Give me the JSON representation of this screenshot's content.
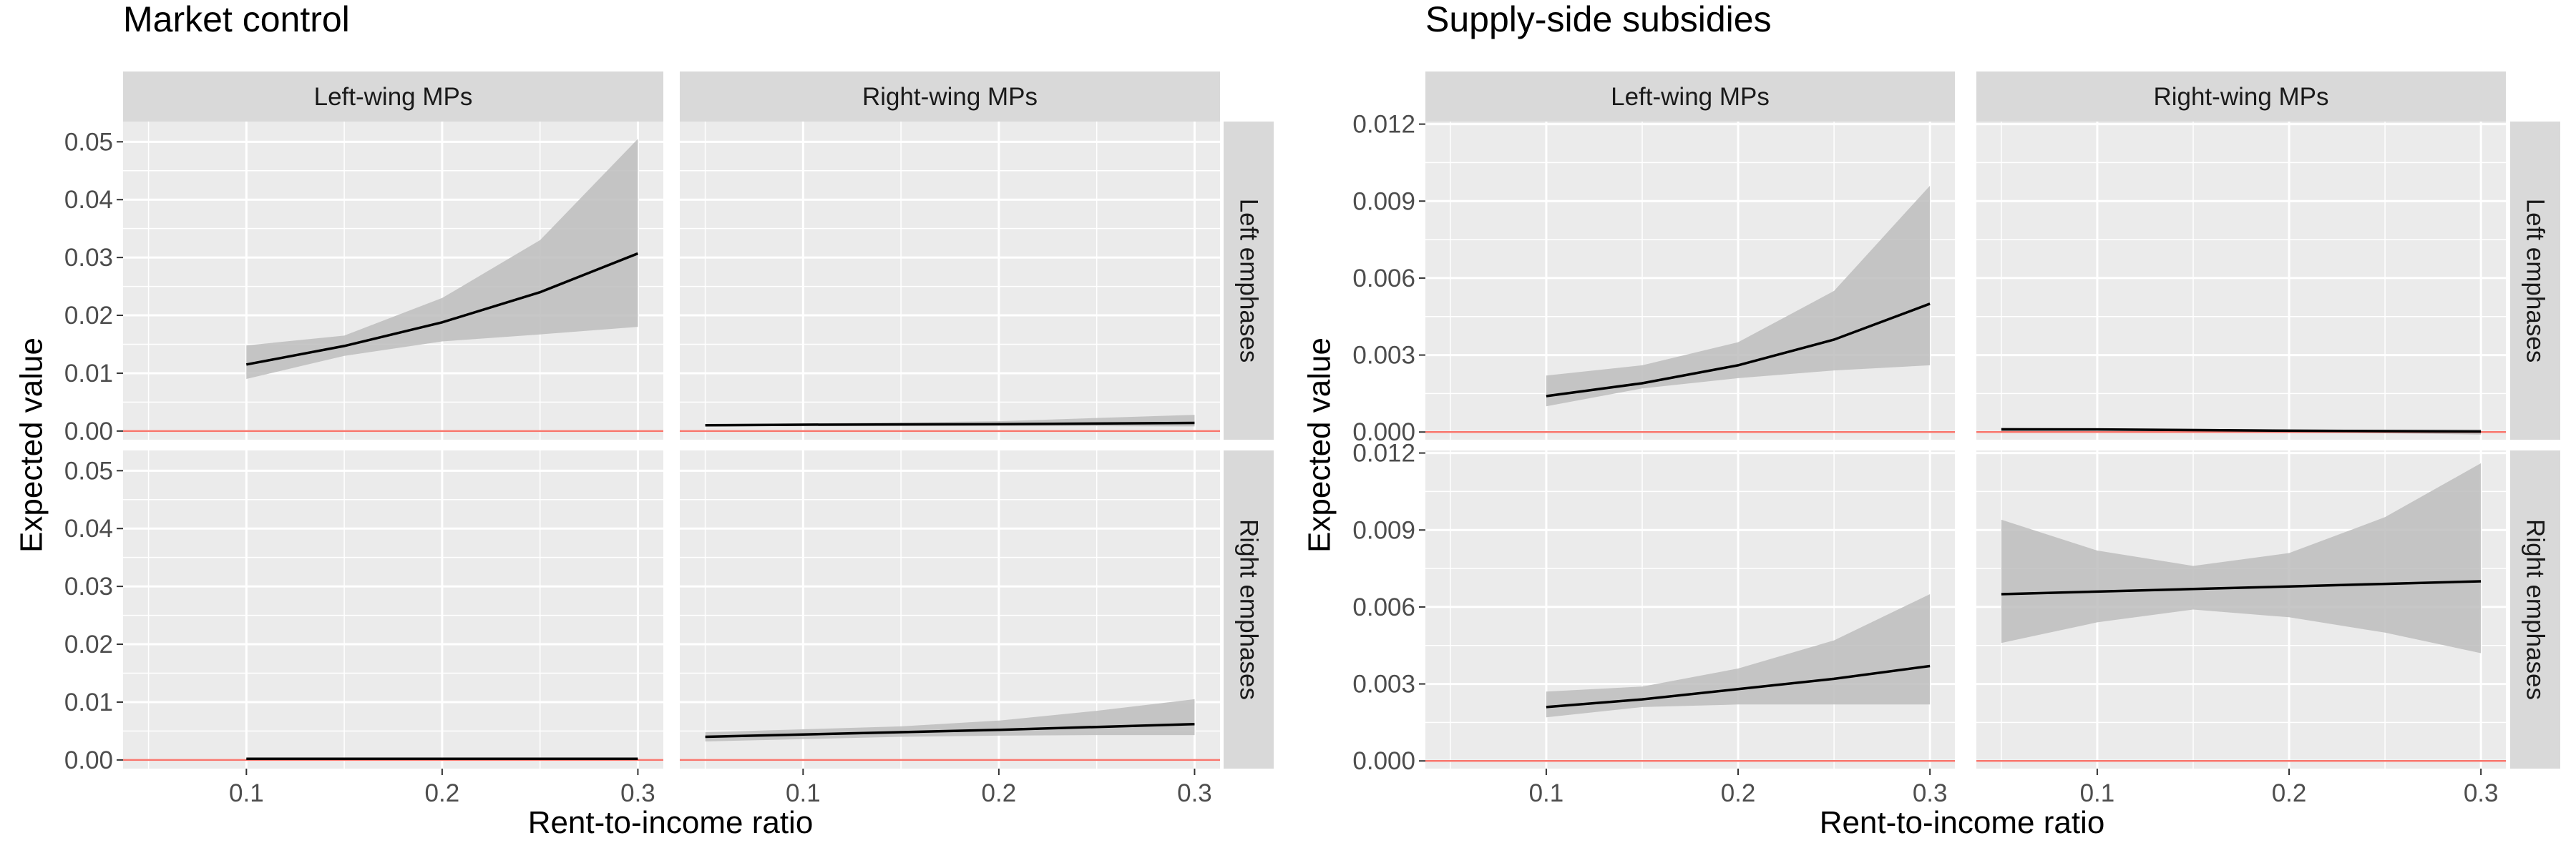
{
  "charts": [
    {
      "title": "Market control",
      "x_axis_title": "Rent-to-income ratio",
      "y_axis_title": "Expected value",
      "col_strips": [
        "Left-wing MPs",
        "Right-wing MPs"
      ],
      "row_strips": [
        "Left emphases",
        "Right emphases"
      ],
      "x_tick_labels": [
        "0.1",
        "0.2",
        "0.3"
      ],
      "y_tick_labels": [
        "0.00",
        "0.01",
        "0.02",
        "0.03",
        "0.04",
        "0.05"
      ]
    },
    {
      "title": "Supply-side subsidies",
      "x_axis_title": "Rent-to-income ratio",
      "y_axis_title": "Expected value",
      "col_strips": [
        "Left-wing MPs",
        "Right-wing MPs"
      ],
      "row_strips": [
        "Left emphases",
        "Right emphases"
      ],
      "x_tick_labels": [
        "0.1",
        "0.2",
        "0.3"
      ],
      "y_tick_labels": [
        "0.000",
        "0.003",
        "0.006",
        "0.009",
        "0.012"
      ]
    }
  ],
  "chart_data": [
    {
      "type": "line",
      "title": "Market control",
      "xlabel": "Rent-to-income ratio",
      "ylabel": "Expected value",
      "xlim": [
        0.037,
        0.313
      ],
      "ylim": [
        -0.0015,
        0.0535
      ],
      "x_ticks": [
        0.1,
        0.2,
        0.3
      ],
      "y_ticks": [
        0,
        0.01,
        0.02,
        0.03,
        0.04,
        0.05
      ],
      "facet_cols": [
        "Left-wing MPs",
        "Right-wing MPs"
      ],
      "facet_rows": [
        "Left emphases",
        "Right emphases"
      ],
      "reference_line": {
        "y": 0,
        "color": "#f8766d"
      },
      "colors": {
        "line": "#000000",
        "ribbon": "#bdbdbd",
        "panel": "#ebebeb",
        "strip": "#d9d9d9",
        "grid": "#ffffff"
      },
      "grid": true,
      "panels": [
        {
          "row": "Left emphases",
          "col": "Left-wing MPs",
          "x": [
            0.1,
            0.15,
            0.2,
            0.25,
            0.3
          ],
          "y": [
            0.0115,
            0.0147,
            0.0188,
            0.024,
            0.0307
          ],
          "lower": [
            0.009,
            0.013,
            0.0155,
            0.0167,
            0.018
          ],
          "upper": [
            0.0148,
            0.0165,
            0.023,
            0.033,
            0.0505
          ]
        },
        {
          "row": "Left emphases",
          "col": "Right-wing MPs",
          "x": [
            0.05,
            0.1,
            0.2,
            0.3
          ],
          "y": [
            0.001,
            0.0011,
            0.0012,
            0.0014
          ],
          "lower": [
            0.0008,
            0.0009,
            0.0009,
            0.0008
          ],
          "upper": [
            0.0012,
            0.0013,
            0.0017,
            0.0028
          ]
        },
        {
          "row": "Right emphases",
          "col": "Left-wing MPs",
          "x": [
            0.1,
            0.2,
            0.3
          ],
          "y": [
            0.0002,
            0.0002,
            0.0002
          ],
          "lower": [
            0.0001,
            0.0001,
            0.0001
          ],
          "upper": [
            0.0003,
            0.0003,
            0.0003
          ]
        },
        {
          "row": "Right emphases",
          "col": "Right-wing MPs",
          "x": [
            0.05,
            0.1,
            0.15,
            0.2,
            0.25,
            0.3
          ],
          "y": [
            0.004,
            0.0044,
            0.0048,
            0.0052,
            0.0057,
            0.0062
          ],
          "lower": [
            0.0032,
            0.0036,
            0.004,
            0.0042,
            0.0043,
            0.0043
          ],
          "upper": [
            0.0048,
            0.0053,
            0.0058,
            0.0068,
            0.0085,
            0.0105
          ]
        }
      ]
    },
    {
      "type": "line",
      "title": "Supply-side subsidies",
      "xlabel": "Rent-to-income ratio",
      "ylabel": "Expected value",
      "xlim": [
        0.037,
        0.313
      ],
      "ylim": [
        -0.0003,
        0.0121
      ],
      "x_ticks": [
        0.1,
        0.2,
        0.3
      ],
      "y_ticks": [
        0,
        0.003,
        0.006,
        0.009,
        0.012
      ],
      "facet_cols": [
        "Left-wing MPs",
        "Right-wing MPs"
      ],
      "facet_rows": [
        "Left emphases",
        "Right emphases"
      ],
      "reference_line": {
        "y": 0,
        "color": "#f8766d"
      },
      "colors": {
        "line": "#000000",
        "ribbon": "#bdbdbd",
        "panel": "#ebebeb",
        "strip": "#d9d9d9",
        "grid": "#ffffff"
      },
      "grid": true,
      "panels": [
        {
          "row": "Left emphases",
          "col": "Left-wing MPs",
          "x": [
            0.1,
            0.15,
            0.2,
            0.25,
            0.3
          ],
          "y": [
            0.0014,
            0.0019,
            0.0026,
            0.0036,
            0.005
          ],
          "lower": [
            0.001,
            0.0017,
            0.0021,
            0.0024,
            0.0026
          ],
          "upper": [
            0.0022,
            0.0026,
            0.0035,
            0.0055,
            0.0096
          ]
        },
        {
          "row": "Left emphases",
          "col": "Right-wing MPs",
          "x": [
            0.05,
            0.1,
            0.2,
            0.3
          ],
          "y": [
            0.0001,
            0.0001,
            5e-05,
            2e-05
          ],
          "lower": [
            5e-05,
            5e-05,
            0.0,
            -0.0001
          ],
          "upper": [
            0.00018,
            0.00015,
            0.0001,
            0.0001
          ]
        },
        {
          "row": "Right emphases",
          "col": "Left-wing MPs",
          "x": [
            0.1,
            0.15,
            0.2,
            0.25,
            0.3
          ],
          "y": [
            0.0021,
            0.0024,
            0.0028,
            0.0032,
            0.0037
          ],
          "lower": [
            0.0017,
            0.0021,
            0.0022,
            0.0022,
            0.0022
          ],
          "upper": [
            0.0027,
            0.0029,
            0.0036,
            0.0047,
            0.0065
          ]
        },
        {
          "row": "Right emphases",
          "col": "Right-wing MPs",
          "x": [
            0.05,
            0.1,
            0.15,
            0.2,
            0.25,
            0.3
          ],
          "y": [
            0.0065,
            0.0066,
            0.0067,
            0.0068,
            0.0069,
            0.007
          ],
          "lower": [
            0.0046,
            0.0054,
            0.0059,
            0.0056,
            0.005,
            0.0042
          ],
          "upper": [
            0.0094,
            0.0082,
            0.0076,
            0.0081,
            0.0095,
            0.0116
          ]
        }
      ]
    }
  ]
}
